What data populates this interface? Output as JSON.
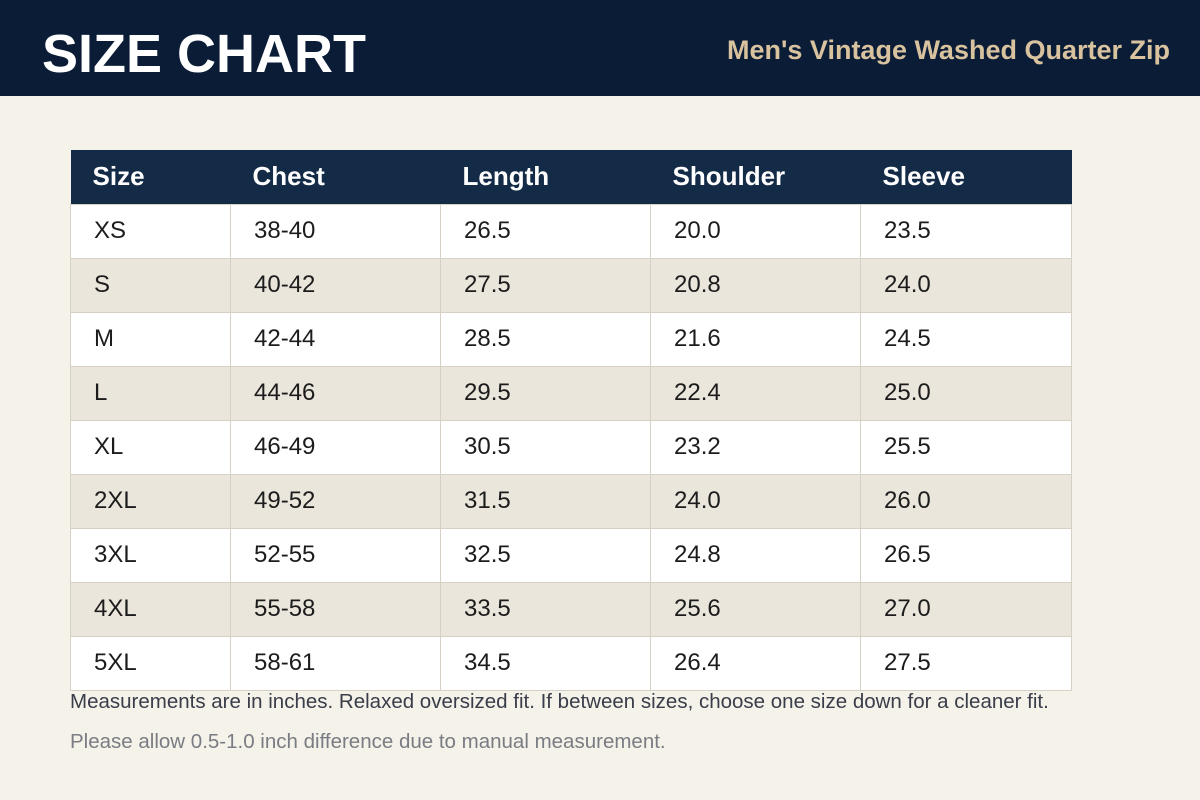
{
  "header": {
    "title": "SIZE CHART",
    "subtitle": "Men's Vintage Washed Quarter Zip"
  },
  "table": {
    "columns": [
      "Size",
      "Chest",
      "Length",
      "Shoulder",
      "Sleeve"
    ],
    "rows": [
      [
        "XS",
        "38-40",
        "26.5",
        "20.0",
        "23.5"
      ],
      [
        "S",
        "40-42",
        "27.5",
        "20.8",
        "24.0"
      ],
      [
        "M",
        "42-44",
        "28.5",
        "21.6",
        "24.5"
      ],
      [
        "L",
        "44-46",
        "29.5",
        "22.4",
        "25.0"
      ],
      [
        "XL",
        "46-49",
        "30.5",
        "23.2",
        "25.5"
      ],
      [
        "2XL",
        "49-52",
        "31.5",
        "24.0",
        "26.0"
      ],
      [
        "3XL",
        "52-55",
        "32.5",
        "24.8",
        "26.5"
      ],
      [
        "4XL",
        "55-58",
        "33.5",
        "25.6",
        "27.0"
      ],
      [
        "5XL",
        "58-61",
        "34.5",
        "26.4",
        "27.5"
      ]
    ]
  },
  "notes": [
    "Measurements are in inches. Relaxed oversized fit. If between sizes, choose one size down for a cleaner fit.",
    "Please allow 0.5-1.0 inch difference due to manual measurement."
  ]
}
